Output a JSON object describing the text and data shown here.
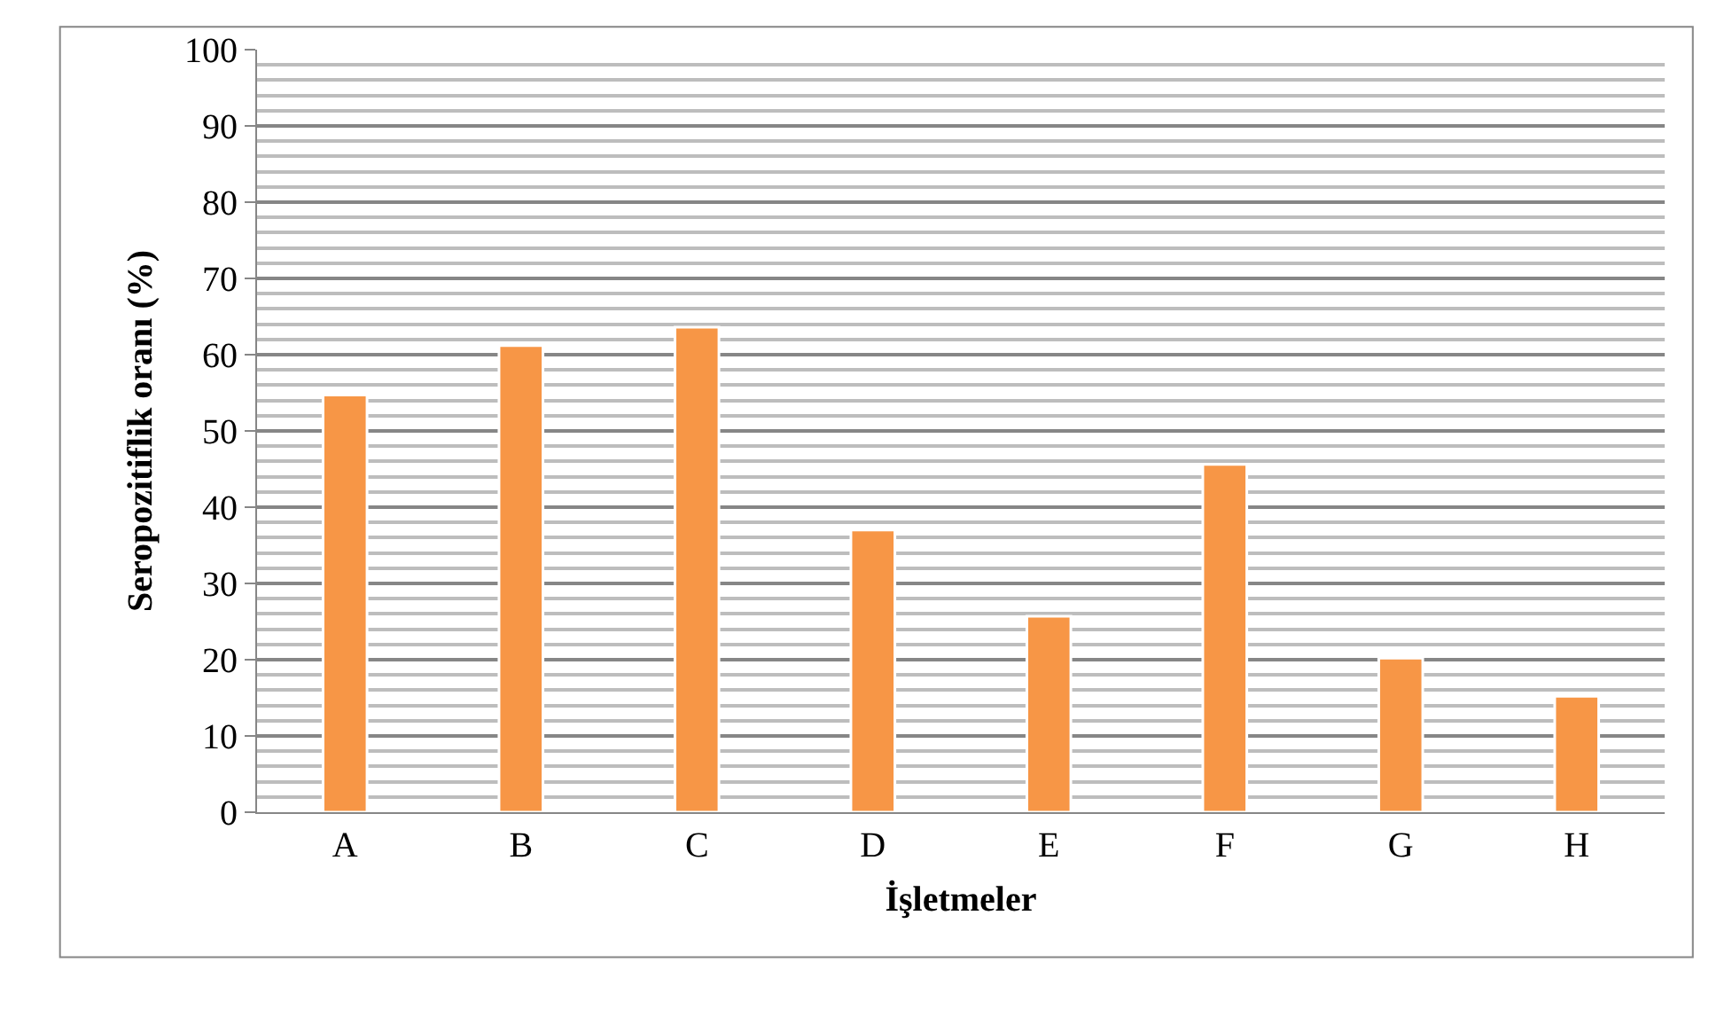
{
  "chart_data": {
    "type": "bar",
    "xlabel": "İşletmeler",
    "ylabel": "Seropozitiflik oranı (%)",
    "categories": [
      "A",
      "B",
      "C",
      "D",
      "E",
      "F",
      "G",
      "H"
    ],
    "values": [
      54.7,
      61.2,
      63.6,
      37.0,
      25.7,
      45.6,
      20.2,
      15.2
    ],
    "color": "#f79646",
    "ylim": [
      0,
      100
    ],
    "yticks": [
      0,
      10,
      20,
      30,
      40,
      50,
      60,
      70,
      80,
      90,
      100
    ],
    "grid": "y",
    "legend": false
  }
}
